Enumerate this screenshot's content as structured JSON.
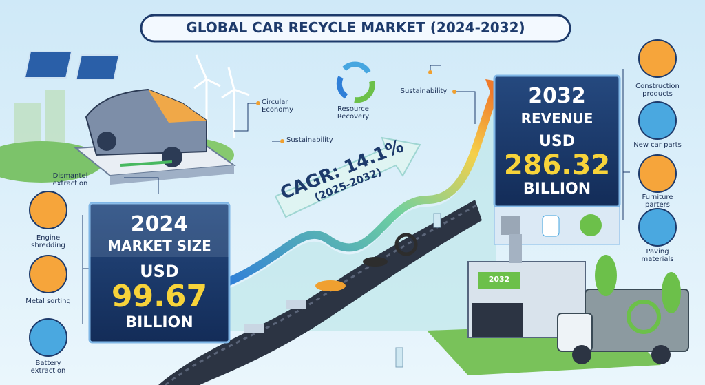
{
  "title": "GLOBAL CAR RECYCLE MARKET (2024-2032)",
  "dismantle_label": "Dismantel extraction",
  "concepts": [
    "Circular Economy",
    "Sustainability",
    "Resource Recovery",
    "Sustainability"
  ],
  "cagr": {
    "text": "CAGR: 14.1%",
    "period": "(2025-2032)"
  },
  "market_2024": {
    "year": "2024",
    "label": "MARKET SIZE",
    "currency": "USD",
    "value": "99.67",
    "unit": "BILLION"
  },
  "revenue_2032": {
    "year": "2032",
    "label": "REVENUE",
    "currency": "USD",
    "value": "286.32",
    "unit": "BILLION"
  },
  "processes": [
    "Engine shredding",
    "Metal sorting",
    "Battery extraction"
  ],
  "outputs": [
    "Construction products",
    "New car parts",
    "Furniture parters",
    "Paving materials"
  ],
  "factory_sign": "2032"
}
